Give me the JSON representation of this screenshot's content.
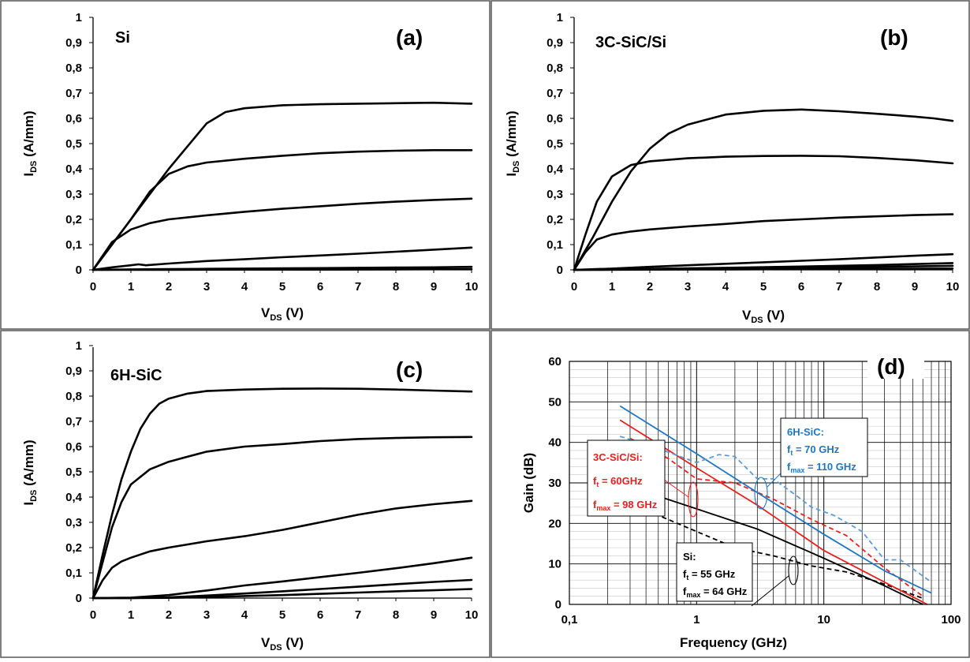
{
  "figure": {
    "panels": [
      {
        "id": "a",
        "tag": "(a)",
        "material": "Si"
      },
      {
        "id": "b",
        "tag": "(b)",
        "material": "3C-SiC/Si"
      },
      {
        "id": "c",
        "tag": "(c)",
        "material": "6H-SiC"
      },
      {
        "id": "d",
        "tag": "(d)"
      }
    ]
  },
  "chart_data": [
    {
      "id": "a",
      "type": "line",
      "title": "Si",
      "panel_label": "(a)",
      "xlabel": "VDS (V)",
      "ylabel": "IDS (A/mm)",
      "xlim": [
        0,
        10
      ],
      "ylim": [
        0,
        1
      ],
      "x_ticks": [
        "0",
        "1",
        "2",
        "3",
        "4",
        "5",
        "6",
        "7",
        "8",
        "9",
        "10"
      ],
      "y_ticks": [
        "0",
        "0,1",
        "0,2",
        "0,3",
        "0,4",
        "0,5",
        "0,6",
        "0,7",
        "0,8",
        "0,9",
        "1"
      ],
      "grid": false,
      "series": [
        {
          "x": [
            0,
            0.5,
            1,
            1.5,
            2,
            2.5,
            3,
            3.5,
            4,
            5,
            6,
            7,
            8,
            9,
            10
          ],
          "y": [
            0,
            0.1,
            0.2,
            0.3,
            0.4,
            0.49,
            0.58,
            0.625,
            0.64,
            0.652,
            0.656,
            0.658,
            0.66,
            0.662,
            0.658
          ]
        },
        {
          "x": [
            0,
            0.5,
            1,
            1.5,
            2,
            2.5,
            3,
            4,
            5,
            6,
            7,
            8,
            9,
            10
          ],
          "y": [
            0,
            0.1,
            0.2,
            0.31,
            0.38,
            0.41,
            0.425,
            0.44,
            0.452,
            0.462,
            0.468,
            0.472,
            0.474,
            0.474
          ]
        },
        {
          "x": [
            0,
            0.5,
            1,
            1.5,
            2,
            3,
            4,
            5,
            6,
            7,
            8,
            9,
            10
          ],
          "y": [
            0,
            0.11,
            0.16,
            0.185,
            0.2,
            0.216,
            0.23,
            0.242,
            0.252,
            0.262,
            0.27,
            0.277,
            0.282
          ]
        },
        {
          "x": [
            0,
            0.5,
            1,
            1.2,
            1.4,
            2,
            3,
            4,
            5,
            6,
            7,
            8,
            9,
            10
          ],
          "y": [
            0,
            0.01,
            0.018,
            0.022,
            0.018,
            0.025,
            0.035,
            0.042,
            0.05,
            0.057,
            0.064,
            0.072,
            0.08,
            0.088
          ]
        },
        {
          "x": [
            0,
            1,
            2,
            3,
            4,
            5,
            6,
            7,
            8,
            9,
            10
          ],
          "y": [
            0,
            0.002,
            0.003,
            0.004,
            0.005,
            0.006,
            0.007,
            0.008,
            0.009,
            0.01,
            0.012
          ]
        },
        {
          "x": [
            0,
            2,
            4,
            6,
            8,
            10
          ],
          "y": [
            0,
            0,
            0.001,
            0.001,
            0.002,
            0.003
          ]
        }
      ]
    },
    {
      "id": "b",
      "type": "line",
      "title": "3C-SiC/Si",
      "panel_label": "(b)",
      "xlabel": "VDS (V)",
      "ylabel": "IDS (A/mm)",
      "xlim": [
        0,
        10
      ],
      "ylim": [
        0,
        1
      ],
      "x_ticks": [
        "0",
        "1",
        "2",
        "3",
        "4",
        "5",
        "6",
        "7",
        "8",
        "9",
        "10"
      ],
      "y_ticks": [
        "0",
        "0,1",
        "0,2",
        "0,3",
        "0,4",
        "0,5",
        "0,6",
        "0,7",
        "0,8",
        "0,9",
        "1"
      ],
      "grid": false,
      "series": [
        {
          "x": [
            0,
            0.5,
            1,
            1.5,
            2,
            2.5,
            3,
            4,
            5,
            6,
            7,
            8,
            9,
            9.5,
            10
          ],
          "y": [
            0,
            0.13,
            0.27,
            0.39,
            0.48,
            0.54,
            0.575,
            0.615,
            0.63,
            0.635,
            0.628,
            0.618,
            0.607,
            0.6,
            0.59
          ]
        },
        {
          "x": [
            0,
            0.3,
            0.6,
            1,
            1.5,
            2,
            3,
            4,
            5,
            6,
            7,
            8,
            9,
            10
          ],
          "y": [
            0,
            0.14,
            0.27,
            0.37,
            0.415,
            0.43,
            0.442,
            0.448,
            0.451,
            0.452,
            0.45,
            0.443,
            0.434,
            0.422
          ]
        },
        {
          "x": [
            0,
            0.3,
            0.6,
            1,
            1.5,
            2,
            3,
            4,
            5,
            6,
            7,
            8,
            9,
            10
          ],
          "y": [
            0,
            0.07,
            0.12,
            0.14,
            0.152,
            0.16,
            0.172,
            0.182,
            0.193,
            0.2,
            0.207,
            0.212,
            0.217,
            0.22
          ]
        },
        {
          "x": [
            0,
            1,
            2,
            3,
            4,
            5,
            6,
            7,
            8,
            9,
            10
          ],
          "y": [
            0,
            0.005,
            0.012,
            0.018,
            0.024,
            0.03,
            0.036,
            0.042,
            0.049,
            0.056,
            0.062
          ]
        },
        {
          "x": [
            0,
            2,
            4,
            6,
            8,
            10
          ],
          "y": [
            0,
            0.004,
            0.008,
            0.013,
            0.019,
            0.027
          ]
        },
        {
          "x": [
            0,
            2,
            4,
            6,
            8,
            10
          ],
          "y": [
            0,
            0.002,
            0.005,
            0.008,
            0.012,
            0.016
          ]
        },
        {
          "x": [
            0,
            2,
            4,
            6,
            8,
            10
          ],
          "y": [
            0,
            0.001,
            0.002,
            0.003,
            0.004,
            0.005
          ]
        }
      ]
    },
    {
      "id": "c",
      "type": "line",
      "title": "6H-SiC",
      "panel_label": "(c)",
      "xlabel": "VDS (V)",
      "ylabel": "IDS (A/mm)",
      "xlim": [
        0,
        10
      ],
      "ylim": [
        0,
        1
      ],
      "x_ticks": [
        "0",
        "1",
        "2",
        "3",
        "4",
        "5",
        "6",
        "7",
        "8",
        "9",
        "10"
      ],
      "y_ticks": [
        "0",
        "0,1",
        "0,2",
        "0,3",
        "0,4",
        "0,5",
        "0,6",
        "0,7",
        "0,8",
        "0,9",
        "1"
      ],
      "grid": false,
      "series": [
        {
          "x": [
            0,
            0.25,
            0.5,
            0.75,
            1,
            1.25,
            1.5,
            1.75,
            2,
            2.5,
            3,
            4,
            5,
            6,
            7,
            8,
            9,
            10
          ],
          "y": [
            0,
            0.17,
            0.33,
            0.47,
            0.58,
            0.67,
            0.73,
            0.77,
            0.79,
            0.81,
            0.82,
            0.826,
            0.829,
            0.83,
            0.829,
            0.826,
            0.822,
            0.818
          ]
        },
        {
          "x": [
            0,
            0.25,
            0.5,
            0.75,
            1,
            1.5,
            2,
            2.5,
            3,
            4,
            5,
            6,
            7,
            8,
            9,
            10
          ],
          "y": [
            0,
            0.14,
            0.28,
            0.38,
            0.45,
            0.51,
            0.54,
            0.56,
            0.58,
            0.6,
            0.61,
            0.622,
            0.63,
            0.634,
            0.637,
            0.638
          ]
        },
        {
          "x": [
            0,
            0.25,
            0.5,
            0.75,
            1,
            1.5,
            2,
            3,
            4,
            5,
            6,
            7,
            8,
            9,
            10
          ],
          "y": [
            0,
            0.07,
            0.12,
            0.145,
            0.16,
            0.185,
            0.2,
            0.225,
            0.245,
            0.27,
            0.3,
            0.33,
            0.355,
            0.372,
            0.385
          ]
        },
        {
          "x": [
            0,
            1,
            2,
            3,
            4,
            5,
            6,
            7,
            8,
            9,
            10
          ],
          "y": [
            0,
            0.002,
            0.012,
            0.03,
            0.05,
            0.066,
            0.083,
            0.1,
            0.118,
            0.138,
            0.16
          ]
        },
        {
          "x": [
            0,
            1,
            2,
            3,
            4,
            5,
            6,
            7,
            8,
            9,
            10
          ],
          "y": [
            0,
            0,
            0.003,
            0.01,
            0.018,
            0.027,
            0.036,
            0.045,
            0.055,
            0.064,
            0.072
          ]
        },
        {
          "x": [
            0,
            1,
            2,
            3,
            4,
            5,
            6,
            7,
            8,
            9,
            10
          ],
          "y": [
            0,
            0,
            0.001,
            0.004,
            0.008,
            0.012,
            0.017,
            0.022,
            0.027,
            0.031,
            0.036
          ]
        }
      ]
    },
    {
      "id": "d",
      "type": "line",
      "panel_label": "(d)",
      "xlabel": "Frequency (GHz)",
      "ylabel": "Gain (dB)",
      "xscale": "log",
      "xlim": [
        0.1,
        100
      ],
      "ylim": [
        0,
        60
      ],
      "x_ticks": [
        "0,1",
        "1",
        "10",
        "100"
      ],
      "y_ticks": [
        "0",
        "10",
        "20",
        "30",
        "40",
        "50",
        "60"
      ],
      "grid": true,
      "series": [
        {
          "group": "Si",
          "style": "solid",
          "color": "#000000",
          "x": [
            0.3,
            1,
            3,
            10,
            30,
            60
          ],
          "y": [
            29,
            23.6,
            18.6,
            11.4,
            4.6,
            0
          ]
        },
        {
          "group": "Si",
          "style": "dashed",
          "color": "#000000",
          "x": [
            0.25,
            0.5,
            1,
            2,
            4,
            8,
            15,
            30,
            60
          ],
          "y": [
            27,
            22,
            18,
            14,
            12,
            9.5,
            8,
            5,
            1.5
          ]
        },
        {
          "group": "3C-SiC/Si",
          "style": "solid",
          "color": "#e82020",
          "x": [
            0.25,
            1,
            3,
            10,
            30,
            65
          ],
          "y": [
            45.5,
            33.7,
            24.5,
            13.3,
            5.5,
            0
          ]
        },
        {
          "group": "3C-SiC/Si",
          "style": "dashed",
          "color": "#e82020",
          "x": [
            0.3,
            0.6,
            1,
            2,
            4,
            8,
            15,
            30,
            60
          ],
          "y": [
            41,
            36,
            31,
            30,
            26,
            21,
            17,
            9,
            2
          ]
        },
        {
          "group": "6H-SiC",
          "style": "solid",
          "color": "#1f77c0",
          "x": [
            0.25,
            1,
            3,
            10,
            30,
            70
          ],
          "y": [
            49,
            37.2,
            27.6,
            17.3,
            8.3,
            2.8
          ]
        },
        {
          "group": "6H-SiC",
          "style": "dashed",
          "color": "#5b9bd5",
          "x": [
            0.25,
            0.5,
            1,
            1.5,
            2,
            3,
            4,
            6,
            8,
            12,
            20,
            30,
            40,
            70
          ],
          "y": [
            41.5,
            38.5,
            35,
            37,
            36.5,
            31,
            31,
            27,
            24,
            22,
            18,
            11,
            11,
            5.5
          ]
        }
      ],
      "annotations": [
        {
          "group": "Si",
          "color": "#000000",
          "name": "Si:",
          "ft_sym": "f",
          "ft_sub": "t",
          "ft_val": " = 55 GHz",
          "fmax_sym": "f",
          "fmax_sub": "max",
          "fmax_val": " = 64 GHz"
        },
        {
          "group": "3C-SiC/Si",
          "color": "#e82020",
          "name": "3C-SiC/Si:",
          "ft_sym": "f",
          "ft_sub": "t",
          "ft_val": " = 60GHz",
          "fmax_sym": "f",
          "fmax_sub": "max",
          "fmax_val": " = 98 GHz"
        },
        {
          "group": "6H-SiC",
          "color": "#1f77c0",
          "name": "6H-SiC:",
          "ft_sym": "f",
          "ft_sub": "t",
          "ft_val": " = 70 GHz",
          "fmax_sym": "f",
          "fmax_sub": "max",
          "fmax_val": " = 110 GHz"
        }
      ]
    }
  ]
}
